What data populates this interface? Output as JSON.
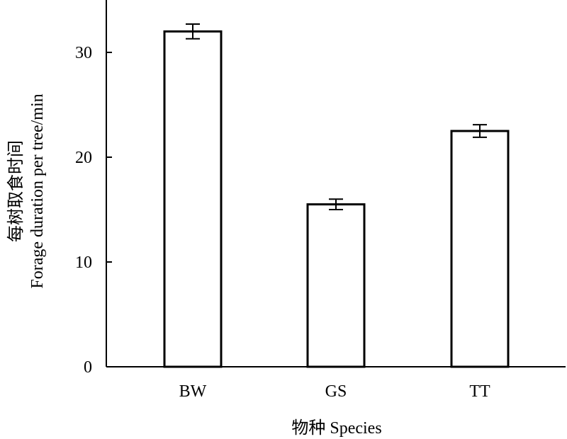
{
  "chart_data": {
    "type": "bar",
    "categories": [
      "BW",
      "GS",
      "TT"
    ],
    "values": [
      32.0,
      15.5,
      22.5
    ],
    "errors": [
      0.7,
      0.5,
      0.6
    ],
    "ylabel_zh": "每树取食时间",
    "ylabel_en": "Forage duration per tree/min",
    "xlabel": "物种 Species",
    "ylim": [
      0,
      35
    ],
    "yticks": [
      0,
      10,
      20,
      30
    ],
    "grid": false,
    "colors": {
      "bar_fill": "#ffffff",
      "bar_stroke": "#000000",
      "axis": "#000000"
    }
  }
}
